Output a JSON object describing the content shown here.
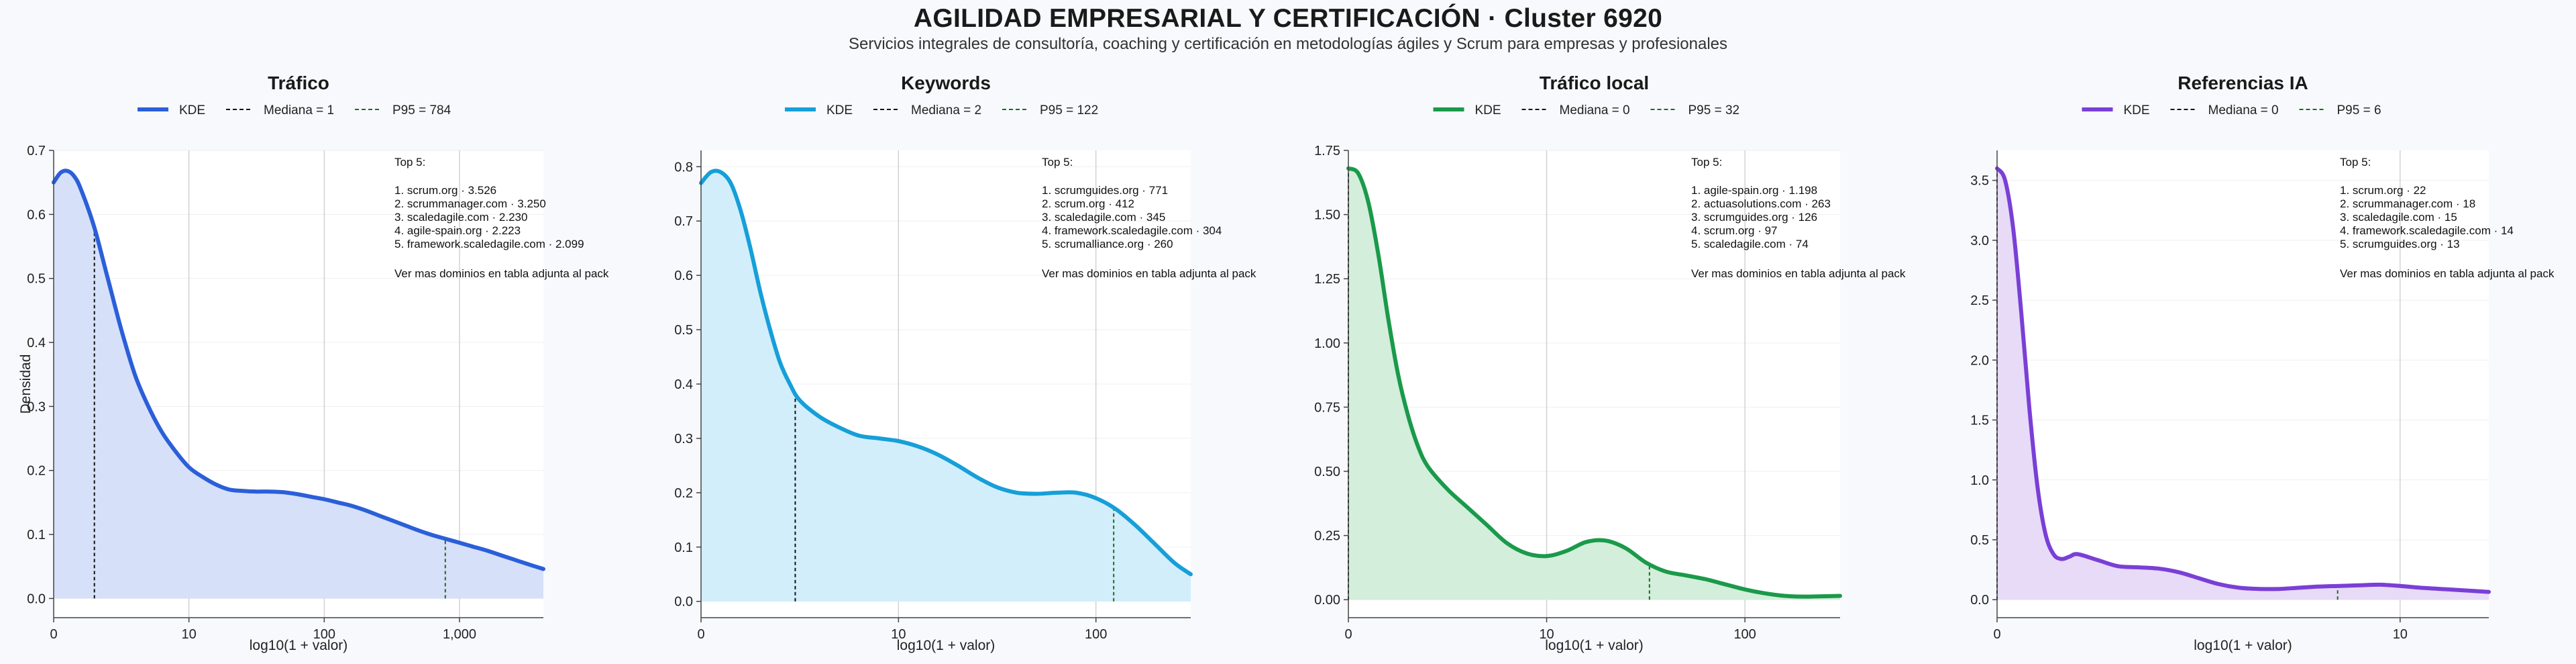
{
  "header": {
    "title": "AGILIDAD EMPRESARIAL Y CERTIFICACIÓN · Cluster 6920",
    "subtitle": "Servicios integrales de consultoría, coaching y certificación en metodologías ágiles y Scrum para empresas y profesionales"
  },
  "colors": {
    "median_line": "#111111",
    "p95_line": "#1f6b1f",
    "plot_bg": "#ffffff",
    "grid": "#c8c8c8"
  },
  "chart_data": [
    {
      "type": "area",
      "title": "Tráfico",
      "color": "#2b5fd9",
      "fill": "#d6e0f8",
      "xlabel": "log10(1 + valor)",
      "ylabel": "Densidad",
      "xlim": [
        0,
        3.62
      ],
      "ylim": [
        -0.03,
        0.7
      ],
      "yticks": [
        0.0,
        0.1,
        0.2,
        0.3,
        0.4,
        0.5,
        0.6,
        0.7
      ],
      "ytick_labels": [
        "0.0",
        "0.1",
        "0.2",
        "0.3",
        "0.4",
        "0.5",
        "0.6",
        "0.7"
      ],
      "xticks": [
        0,
        1,
        2,
        3
      ],
      "xtick_labels": [
        "0",
        "10",
        "100",
        "1,000"
      ],
      "legend": {
        "kde": "KDE",
        "median": "Mediana = 1",
        "p95": "P95 = 784"
      },
      "median_x": 0.301,
      "p95_x": 2.895,
      "series": [
        {
          "name": "KDE",
          "x": [
            0,
            0.05,
            0.1,
            0.15,
            0.2,
            0.3,
            0.4,
            0.5,
            0.6,
            0.7,
            0.8,
            0.9,
            1.0,
            1.1,
            1.2,
            1.3,
            1.4,
            1.5,
            1.6,
            1.7,
            1.8,
            1.9,
            2.0,
            2.1,
            2.2,
            2.3,
            2.4,
            2.5,
            2.6,
            2.7,
            2.8,
            2.9,
            3.0,
            3.1,
            3.2,
            3.3,
            3.4,
            3.5,
            3.62
          ],
          "y": [
            0.65,
            0.665,
            0.668,
            0.66,
            0.64,
            0.58,
            0.5,
            0.42,
            0.35,
            0.3,
            0.26,
            0.23,
            0.205,
            0.19,
            0.178,
            0.17,
            0.168,
            0.167,
            0.167,
            0.166,
            0.163,
            0.159,
            0.155,
            0.15,
            0.145,
            0.138,
            0.13,
            0.122,
            0.114,
            0.106,
            0.099,
            0.093,
            0.087,
            0.081,
            0.075,
            0.068,
            0.061,
            0.054,
            0.046
          ]
        }
      ],
      "annotation": {
        "heading": "Top 5:",
        "items": [
          "1. scrum.org · 3.526",
          "2. scrummanager.com · 3.250",
          "3. scaledagile.com · 2.230",
          "4. agile-spain.org · 2.223",
          "5. framework.scaledagile.com · 2.099"
        ],
        "footer": "Ver mas dominios en tabla adjunta al pack"
      }
    },
    {
      "type": "area",
      "title": "Keywords",
      "color": "#169fd9",
      "fill": "#d2eefb",
      "xlabel": "log10(1 + valor)",
      "ylabel": "",
      "xlim": [
        0,
        2.48
      ],
      "ylim": [
        -0.03,
        0.83
      ],
      "yticks": [
        0.0,
        0.1,
        0.2,
        0.3,
        0.4,
        0.5,
        0.6,
        0.7,
        0.8
      ],
      "ytick_labels": [
        "0.0",
        "0.1",
        "0.2",
        "0.3",
        "0.4",
        "0.5",
        "0.6",
        "0.7",
        "0.8"
      ],
      "xticks": [
        0,
        1,
        2
      ],
      "xtick_labels": [
        "0",
        "10",
        "100"
      ],
      "legend": {
        "kde": "KDE",
        "median": "Mediana = 2",
        "p95": "P95 = 122"
      },
      "median_x": 0.4771,
      "p95_x": 2.0899,
      "series": [
        {
          "name": "KDE",
          "x": [
            0,
            0.05,
            0.1,
            0.15,
            0.2,
            0.25,
            0.3,
            0.35,
            0.4,
            0.45,
            0.5,
            0.6,
            0.7,
            0.8,
            0.9,
            1.0,
            1.1,
            1.2,
            1.3,
            1.4,
            1.5,
            1.6,
            1.7,
            1.8,
            1.9,
            2.0,
            2.1,
            2.2,
            2.3,
            2.4,
            2.48
          ],
          "y": [
            0.77,
            0.79,
            0.79,
            0.77,
            0.72,
            0.65,
            0.57,
            0.5,
            0.44,
            0.4,
            0.37,
            0.34,
            0.32,
            0.305,
            0.3,
            0.295,
            0.285,
            0.27,
            0.25,
            0.228,
            0.21,
            0.2,
            0.198,
            0.2,
            0.2,
            0.19,
            0.17,
            0.14,
            0.105,
            0.07,
            0.05
          ]
        }
      ],
      "annotation": {
        "heading": "Top 5:",
        "items": [
          "1. scrumguides.org · 771",
          "2. scrum.org · 412",
          "3. scaledagile.com · 345",
          "4. framework.scaledagile.com · 304",
          "5. scrumalliance.org · 260"
        ],
        "footer": "Ver mas dominios en tabla adjunta al pack"
      }
    },
    {
      "type": "area",
      "title": "Tráfico local",
      "color": "#1a9a4a",
      "fill": "#d3eedb",
      "xlabel": "log10(1 + valor)",
      "ylabel": "",
      "xlim": [
        0,
        2.48
      ],
      "ylim": [
        -0.07,
        1.75
      ],
      "yticks": [
        0.0,
        0.25,
        0.5,
        0.75,
        1.0,
        1.25,
        1.5,
        1.75
      ],
      "ytick_labels": [
        "0.00",
        "0.25",
        "0.50",
        "0.75",
        "1.00",
        "1.25",
        "1.50",
        "1.75"
      ],
      "xticks": [
        0,
        1,
        2
      ],
      "xtick_labels": [
        "0",
        "10",
        "100"
      ],
      "legend": {
        "kde": "KDE",
        "median": "Mediana = 0",
        "p95": "P95 = 32"
      },
      "median_x": 0,
      "p95_x": 1.5185,
      "series": [
        {
          "name": "KDE",
          "x": [
            0,
            0.05,
            0.1,
            0.15,
            0.2,
            0.25,
            0.3,
            0.35,
            0.4,
            0.5,
            0.6,
            0.7,
            0.8,
            0.9,
            1.0,
            1.1,
            1.2,
            1.3,
            1.4,
            1.5,
            1.6,
            1.7,
            1.8,
            1.9,
            2.0,
            2.1,
            2.2,
            2.3,
            2.48
          ],
          "y": [
            1.68,
            1.66,
            1.55,
            1.35,
            1.1,
            0.88,
            0.72,
            0.6,
            0.52,
            0.43,
            0.36,
            0.29,
            0.22,
            0.18,
            0.17,
            0.19,
            0.225,
            0.23,
            0.2,
            0.145,
            0.11,
            0.095,
            0.08,
            0.06,
            0.04,
            0.025,
            0.015,
            0.012,
            0.015
          ]
        }
      ],
      "annotation": {
        "heading": "Top 5:",
        "items": [
          "1. agile-spain.org · 1.198",
          "2. actuasolutions.com · 263",
          "3. scrumguides.org · 126",
          "4. scrum.org · 97",
          "5. scaledagile.com · 74"
        ],
        "footer": "Ver mas dominios en tabla adjunta al pack"
      }
    },
    {
      "type": "area",
      "title": "Referencias IA",
      "color": "#7a3fd6",
      "fill": "#e7dbf8",
      "xlabel": "log10(1 + valor)",
      "ylabel": "",
      "xlim": [
        0,
        1.22
      ],
      "ylim": [
        -0.15,
        3.75
      ],
      "yticks": [
        0.0,
        0.5,
        1.0,
        1.5,
        2.0,
        2.5,
        3.0,
        3.5
      ],
      "ytick_labels": [
        "0.0",
        "0.5",
        "1.0",
        "1.5",
        "2.0",
        "2.5",
        "3.0",
        "3.5"
      ],
      "xticks": [
        0,
        1
      ],
      "xtick_labels": [
        "0",
        "10"
      ],
      "legend": {
        "kde": "KDE",
        "median": "Mediana = 0",
        "p95": "P95 = 6"
      },
      "median_x": 0,
      "p95_x": 0.845,
      "series": [
        {
          "name": "KDE",
          "x": [
            0,
            0.02,
            0.04,
            0.06,
            0.08,
            0.1,
            0.12,
            0.14,
            0.16,
            0.18,
            0.2,
            0.25,
            0.3,
            0.35,
            0.4,
            0.45,
            0.5,
            0.55,
            0.6,
            0.65,
            0.7,
            0.75,
            0.8,
            0.85,
            0.9,
            0.95,
            1.0,
            1.05,
            1.1,
            1.15,
            1.22
          ],
          "y": [
            3.6,
            3.5,
            3.1,
            2.4,
            1.6,
            0.95,
            0.55,
            0.38,
            0.34,
            0.36,
            0.38,
            0.33,
            0.28,
            0.27,
            0.26,
            0.23,
            0.18,
            0.13,
            0.1,
            0.09,
            0.09,
            0.1,
            0.11,
            0.115,
            0.12,
            0.125,
            0.115,
            0.1,
            0.09,
            0.08,
            0.065
          ]
        }
      ],
      "annotation": {
        "heading": "Top 5:",
        "items": [
          "1. scrum.org · 22",
          "2. scrummanager.com · 18",
          "3. scaledagile.com · 15",
          "4. framework.scaledagile.com · 14",
          "5. scrumguides.org · 13"
        ],
        "footer": "Ver mas dominios en tabla adjunta al pack"
      }
    }
  ]
}
